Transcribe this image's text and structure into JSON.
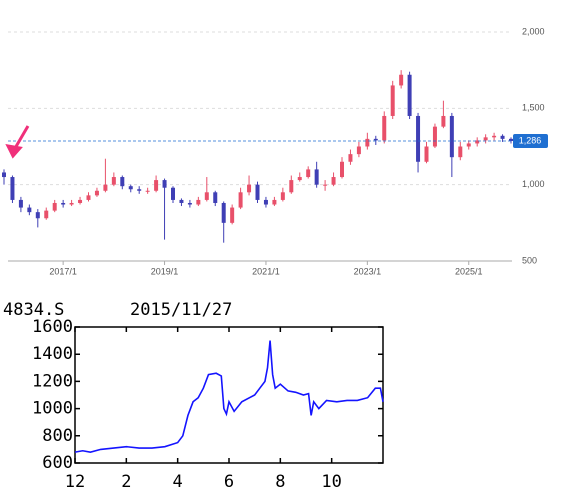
{
  "chart_data": [
    {
      "type": "candlestick",
      "x": [
        "2015/11",
        "2016/1",
        "2016/3",
        "2016/5",
        "2016/7",
        "2016/9",
        "2016/11",
        "2017/1",
        "2017/3",
        "2017/5",
        "2017/7",
        "2017/9",
        "2017/11",
        "2018/1",
        "2018/3",
        "2018/5",
        "2018/7",
        "2018/9",
        "2018/11",
        "2019/1",
        "2019/3",
        "2019/5",
        "2019/7",
        "2019/9",
        "2019/11",
        "2020/1",
        "2020/3",
        "2020/5",
        "2020/7",
        "2020/9",
        "2020/11",
        "2021/1",
        "2021/3",
        "2021/5",
        "2021/7",
        "2021/9",
        "2021/11",
        "2022/1",
        "2022/3",
        "2022/5",
        "2022/7",
        "2022/9",
        "2022/11",
        "2023/1",
        "2023/3",
        "2023/5",
        "2023/7",
        "2023/9",
        "2023/11",
        "2024/1",
        "2024/3",
        "2024/5",
        "2024/7",
        "2024/9",
        "2024/11",
        "2025/1",
        "2025/3",
        "2025/5",
        "2025/7",
        "2025/9",
        "2025/11"
      ],
      "open": [
        1080,
        1050,
        900,
        850,
        820,
        780,
        830,
        880,
        870,
        880,
        900,
        930,
        960,
        1000,
        1050,
        990,
        970,
        960,
        960,
        1030,
        980,
        900,
        880,
        870,
        900,
        950,
        880,
        750,
        850,
        950,
        1000,
        900,
        870,
        900,
        950,
        1030,
        1050,
        1100,
        1000,
        1000,
        1050,
        1150,
        1200,
        1250,
        1300,
        1290,
        1450,
        1650,
        1720,
        1450,
        1150,
        1250,
        1380,
        1450,
        1180,
        1250,
        1270,
        1290,
        1310,
        1320,
        1300
      ],
      "high": [
        1100,
        1060,
        920,
        870,
        840,
        850,
        900,
        900,
        900,
        920,
        950,
        980,
        1170,
        1080,
        1060,
        1000,
        990,
        980,
        1060,
        1040,
        990,
        910,
        900,
        920,
        1050,
        960,
        890,
        870,
        980,
        1060,
        1020,
        920,
        920,
        980,
        1060,
        1080,
        1120,
        1150,
        1030,
        1080,
        1180,
        1230,
        1280,
        1340,
        1320,
        1480,
        1680,
        1750,
        1740,
        1470,
        1280,
        1400,
        1550,
        1470,
        1280,
        1290,
        1310,
        1330,
        1340,
        1330,
        1310
      ],
      "low": [
        1000,
        880,
        820,
        800,
        720,
        770,
        820,
        850,
        860,
        870,
        890,
        920,
        950,
        990,
        970,
        950,
        940,
        940,
        950,
        640,
        880,
        860,
        850,
        860,
        890,
        860,
        620,
        740,
        840,
        930,
        880,
        850,
        860,
        890,
        940,
        1020,
        1040,
        980,
        960,
        990,
        1040,
        1130,
        1180,
        1230,
        1260,
        1270,
        1430,
        1630,
        1430,
        1080,
        1140,
        1240,
        1370,
        1050,
        1160,
        1230,
        1250,
        1270,
        1290,
        1280,
        1270
      ],
      "close": [
        1050,
        900,
        850,
        820,
        780,
        830,
        880,
        870,
        880,
        900,
        930,
        960,
        1000,
        1050,
        990,
        970,
        960,
        960,
        1030,
        980,
        900,
        880,
        870,
        900,
        950,
        880,
        750,
        850,
        950,
        1000,
        900,
        870,
        900,
        950,
        1030,
        1050,
        1100,
        1000,
        1000,
        1050,
        1150,
        1200,
        1250,
        1300,
        1290,
        1450,
        1650,
        1720,
        1450,
        1150,
        1250,
        1380,
        1450,
        1180,
        1250,
        1270,
        1290,
        1310,
        1320,
        1300,
        1286
      ],
      "last_close_label": "1,286",
      "xtick_labels": [
        "2017/1",
        "2019/1",
        "2021/1",
        "2023/1",
        "2025/1"
      ],
      "ylim": [
        500,
        2000
      ],
      "yticks": [
        500,
        {
          "value": 1000,
          "label": "1,000"
        },
        {
          "value": 1500,
          "label": "1,500"
        },
        {
          "value": 2000,
          "label": "2,000"
        }
      ],
      "grid": true,
      "up_color": "#e8506a",
      "down_color": "#3f3fb5",
      "last_color": "#1f6fd1"
    },
    {
      "type": "line",
      "title": "4834.S",
      "subtitle": "2015/11/27",
      "x": [
        0,
        0.3,
        0.6,
        1,
        1.5,
        2,
        2.5,
        3,
        3.5,
        4,
        4.2,
        4.4,
        4.6,
        4.8,
        5,
        5.2,
        5.5,
        5.7,
        5.8,
        5.9,
        6,
        6.2,
        6.5,
        6.8,
        7,
        7.2,
        7.4,
        7.5,
        7.6,
        7.7,
        7.8,
        8,
        8.3,
        8.6,
        8.9,
        9.1,
        9.2,
        9.3,
        9.5,
        9.8,
        10.2,
        10.6,
        11,
        11.4,
        11.7,
        11.9,
        12
      ],
      "values": [
        680,
        690,
        680,
        700,
        710,
        720,
        710,
        710,
        720,
        750,
        800,
        950,
        1050,
        1080,
        1150,
        1250,
        1260,
        1240,
        1000,
        960,
        1050,
        980,
        1050,
        1080,
        1100,
        1150,
        1200,
        1300,
        1500,
        1250,
        1150,
        1180,
        1130,
        1120,
        1100,
        1110,
        950,
        1050,
        1000,
        1060,
        1050,
        1060,
        1060,
        1080,
        1150,
        1150,
        1050
      ],
      "color": "#1414ff",
      "xlim": [
        0,
        12
      ],
      "xticks": [
        {
          "value": 0,
          "label": "12"
        },
        2,
        4,
        6,
        8,
        10
      ],
      "ylim": [
        600,
        1600
      ],
      "yticks": [
        600,
        800,
        1000,
        1200,
        1400,
        1600
      ]
    }
  ]
}
